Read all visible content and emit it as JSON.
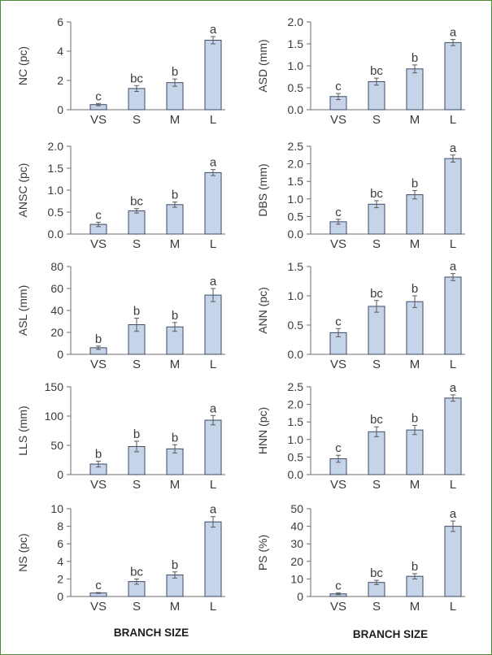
{
  "colors": {
    "bar_fill": "#c6d4ea",
    "bar_stroke": "#3c4a62",
    "frame": "#4f8a3a",
    "text": "#3a3a3a"
  },
  "figure": {
    "xtitle_left": "BRANCH SIZE",
    "xtitle_right": "BRANCH SIZE"
  },
  "chart_data": [
    {
      "type": "bar",
      "ylabel": "NC (pc)",
      "categories": [
        "VS",
        "S",
        "M",
        "L"
      ],
      "values": [
        0.35,
        1.45,
        1.85,
        4.75
      ],
      "errors": [
        0.08,
        0.2,
        0.25,
        0.25
      ],
      "letters": [
        "c",
        "bc",
        "b",
        "a"
      ],
      "ylim": [
        0,
        6
      ],
      "yticks": [
        "0",
        "2",
        "4",
        "6"
      ]
    },
    {
      "type": "bar",
      "ylabel": "ASD (mm)",
      "categories": [
        "VS",
        "S",
        "M",
        "L"
      ],
      "values": [
        0.3,
        0.64,
        0.93,
        1.53
      ],
      "errors": [
        0.07,
        0.08,
        0.09,
        0.07
      ],
      "letters": [
        "c",
        "bc",
        "b",
        "a"
      ],
      "ylim": [
        0,
        2
      ],
      "yticks": [
        "0.0",
        "0.5",
        "1.0",
        "1.5",
        "2.0"
      ]
    },
    {
      "type": "bar",
      "ylabel": "ANSC (pc)",
      "categories": [
        "VS",
        "S",
        "M",
        "L"
      ],
      "values": [
        0.22,
        0.53,
        0.67,
        1.4
      ],
      "errors": [
        0.05,
        0.05,
        0.06,
        0.07
      ],
      "letters": [
        "c",
        "bc",
        "b",
        "a"
      ],
      "ylim": [
        0,
        2
      ],
      "yticks": [
        "0.0",
        "0.5",
        "1.0",
        "1.5",
        "2.0"
      ]
    },
    {
      "type": "bar",
      "ylabel": "DBS (mm)",
      "categories": [
        "VS",
        "S",
        "M",
        "L"
      ],
      "values": [
        0.35,
        0.85,
        1.12,
        2.15
      ],
      "errors": [
        0.07,
        0.1,
        0.12,
        0.1
      ],
      "letters": [
        "c",
        "bc",
        "b",
        "a"
      ],
      "ylim": [
        0,
        2.5
      ],
      "yticks": [
        "0.0",
        "0.5",
        "1.0",
        "1.5",
        "2.0",
        "2.5"
      ]
    },
    {
      "type": "bar",
      "ylabel": "ASL (mm)",
      "categories": [
        "VS",
        "S",
        "M",
        "L"
      ],
      "values": [
        6,
        27,
        25,
        54
      ],
      "errors": [
        1.5,
        6,
        4,
        6
      ],
      "letters": [
        "b",
        "b",
        "b",
        "a"
      ],
      "ylim": [
        0,
        80
      ],
      "yticks": [
        "0",
        "20",
        "40",
        "60",
        "80"
      ]
    },
    {
      "type": "bar",
      "ylabel": "ANN (pc)",
      "categories": [
        "VS",
        "S",
        "M",
        "L"
      ],
      "values": [
        0.37,
        0.82,
        0.9,
        1.32
      ],
      "errors": [
        0.07,
        0.1,
        0.1,
        0.06
      ],
      "letters": [
        "c",
        "bc",
        "b",
        "a"
      ],
      "ylim": [
        0,
        1.5
      ],
      "yticks": [
        "0.0",
        "0.5",
        "1.0",
        "1.5"
      ]
    },
    {
      "type": "bar",
      "ylabel": "LLS (mm)",
      "categories": [
        "VS",
        "S",
        "M",
        "L"
      ],
      "values": [
        18,
        48,
        44,
        93
      ],
      "errors": [
        5,
        9,
        7,
        8
      ],
      "letters": [
        "b",
        "b",
        "b",
        "a"
      ],
      "ylim": [
        0,
        150
      ],
      "yticks": [
        "0",
        "50",
        "100",
        "150"
      ]
    },
    {
      "type": "bar",
      "ylabel": "HNN (pc)",
      "categories": [
        "VS",
        "S",
        "M",
        "L"
      ],
      "values": [
        0.45,
        1.22,
        1.27,
        2.18
      ],
      "errors": [
        0.1,
        0.14,
        0.13,
        0.09
      ],
      "letters": [
        "c",
        "bc",
        "b",
        "a"
      ],
      "ylim": [
        0,
        2.5
      ],
      "yticks": [
        "0.0",
        "0.5",
        "1.0",
        "1.5",
        "2.0",
        "2.5"
      ]
    },
    {
      "type": "bar",
      "ylabel": "NS (pc)",
      "categories": [
        "VS",
        "S",
        "M",
        "L"
      ],
      "values": [
        0.4,
        1.7,
        2.45,
        8.5
      ],
      "errors": [
        0.05,
        0.3,
        0.35,
        0.6
      ],
      "letters": [
        "c",
        "bc",
        "b",
        "a"
      ],
      "ylim": [
        0,
        10
      ],
      "yticks": [
        "0",
        "2",
        "4",
        "6",
        "8",
        "10"
      ]
    },
    {
      "type": "bar",
      "ylabel": "PS (%)",
      "categories": [
        "VS",
        "S",
        "M",
        "L"
      ],
      "values": [
        1.5,
        8,
        11.5,
        40
      ],
      "errors": [
        0.5,
        1.2,
        1.5,
        3
      ],
      "letters": [
        "c",
        "bc",
        "b",
        "a"
      ],
      "ylim": [
        0,
        50
      ],
      "yticks": [
        "0",
        "10",
        "20",
        "30",
        "40",
        "50"
      ]
    }
  ]
}
